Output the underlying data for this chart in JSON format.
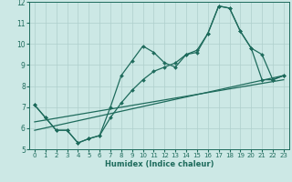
{
  "xlabel": "Humidex (Indice chaleur)",
  "xlim": [
    -0.5,
    23.5
  ],
  "ylim": [
    5,
    12
  ],
  "xticks": [
    0,
    1,
    2,
    3,
    4,
    5,
    6,
    7,
    8,
    9,
    10,
    11,
    12,
    13,
    14,
    15,
    16,
    17,
    18,
    19,
    20,
    21,
    22,
    23
  ],
  "yticks": [
    5,
    6,
    7,
    8,
    9,
    10,
    11,
    12
  ],
  "bg_color": "#cce8e5",
  "line_color": "#1e6b5c",
  "grid_color": "#aecfcc",
  "line1_x": [
    0,
    1,
    2,
    3,
    4,
    5,
    6,
    7,
    8,
    9,
    10,
    11,
    12,
    13,
    14,
    15,
    16,
    17,
    18,
    19,
    20,
    21,
    22,
    23
  ],
  "line1_y": [
    7.1,
    6.5,
    5.9,
    5.9,
    5.3,
    5.5,
    5.65,
    7.0,
    8.5,
    9.2,
    9.9,
    9.6,
    9.1,
    8.9,
    9.5,
    9.6,
    10.5,
    11.8,
    11.7,
    10.6,
    9.8,
    9.5,
    8.3,
    8.5
  ],
  "line2_x": [
    0,
    1,
    2,
    3,
    4,
    5,
    6,
    7,
    8,
    9,
    10,
    11,
    12,
    13,
    14,
    15,
    16,
    17,
    18,
    19,
    20,
    21,
    22,
    23
  ],
  "line2_y": [
    7.1,
    6.5,
    5.9,
    5.9,
    5.3,
    5.5,
    5.65,
    6.5,
    7.2,
    7.8,
    8.3,
    8.7,
    8.9,
    9.1,
    9.5,
    9.7,
    10.5,
    11.8,
    11.7,
    10.6,
    9.8,
    8.3,
    8.3,
    8.5
  ],
  "line3_x": [
    0,
    23
  ],
  "line3_y": [
    6.3,
    8.3
  ],
  "line4_x": [
    0,
    23
  ],
  "line4_y": [
    5.9,
    8.5
  ]
}
